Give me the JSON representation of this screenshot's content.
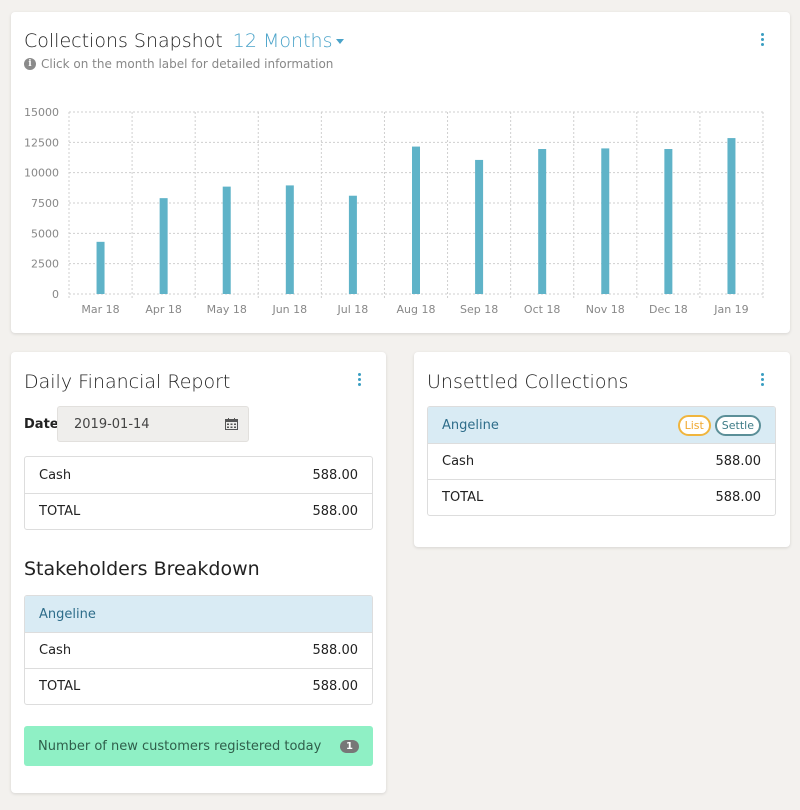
{
  "collections": {
    "title": "Collections Snapshot",
    "period_select": "12 Months",
    "hint": "Click on the month label for detailed information",
    "colors": {
      "bar": "#5fb3c8",
      "accent": "#4aa3c9",
      "grid": "#cfcfcf"
    }
  },
  "chart_data": {
    "type": "bar",
    "categories": [
      "Mar 18",
      "Apr 18",
      "May 18",
      "Jun 18",
      "Jul 18",
      "Aug 18",
      "Sep 18",
      "Oct 18",
      "Nov 18",
      "Dec 18",
      "Jan 19"
    ],
    "values": [
      4300,
      7900,
      8850,
      8950,
      8100,
      12150,
      11050,
      11950,
      12000,
      11950,
      12850
    ],
    "y_ticks": [
      "0",
      "2500",
      "5000",
      "7500",
      "10000",
      "12500",
      "15000"
    ],
    "ylim": [
      0,
      15000
    ],
    "grid": true,
    "title": "",
    "xlabel": "",
    "ylabel": ""
  },
  "daily": {
    "title": "Daily Financial Report",
    "date_label": "Date",
    "date_value": "2019-01-14",
    "rows": [
      {
        "label": "Cash",
        "value": "588.00"
      },
      {
        "label": "TOTAL",
        "value": "588.00"
      }
    ],
    "stakeholders_title": "Stakeholders Breakdown",
    "stakeholder": {
      "name": "Angeline",
      "rows": [
        {
          "label": "Cash",
          "value": "588.00"
        },
        {
          "label": "TOTAL",
          "value": "588.00"
        }
      ]
    },
    "alert": {
      "text": "Number of new customers registered today",
      "count": "1"
    }
  },
  "unsettled": {
    "title": "Unsettled Collections",
    "name": "Angeline",
    "list_label": "List",
    "settle_label": "Settle",
    "rows": [
      {
        "label": "Cash",
        "value": "588.00"
      },
      {
        "label": "TOTAL",
        "value": "588.00"
      }
    ]
  }
}
